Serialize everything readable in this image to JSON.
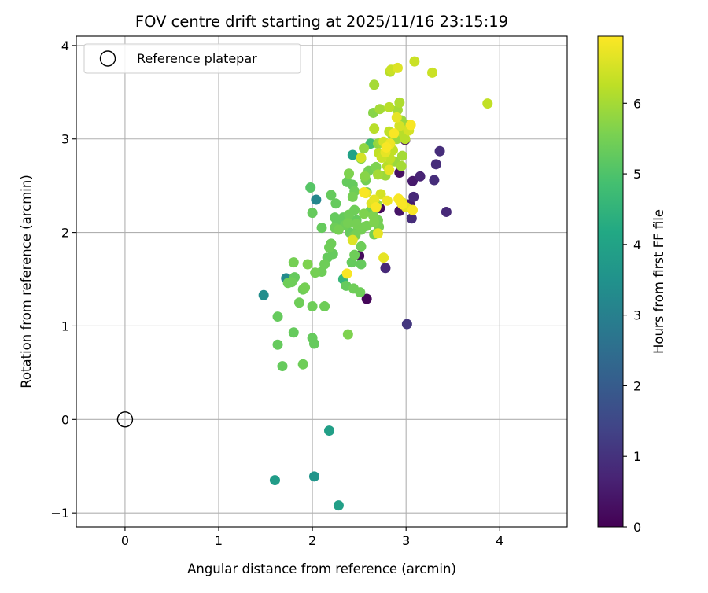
{
  "chart_data": {
    "type": "scatter",
    "title": "FOV centre drift starting at 2025/11/16 23:15:19",
    "xlabel": "Angular distance from reference (arcmin)",
    "ylabel": "Rotation from reference (arcmin)",
    "xlim": [
      -0.52,
      4.72
    ],
    "ylim": [
      -1.15,
      4.1
    ],
    "xticks": [
      0,
      1,
      2,
      3,
      4
    ],
    "yticks": [
      -1,
      0,
      1,
      2,
      3,
      4
    ],
    "xtick_labels": [
      "0",
      "1",
      "2",
      "3",
      "4"
    ],
    "ytick_labels": [
      "−1",
      "0",
      "1",
      "2",
      "3",
      "4"
    ],
    "grid": true,
    "legend": {
      "position": "top-left",
      "entries": [
        {
          "label": "Reference platepar",
          "marker": "open-circle"
        }
      ]
    },
    "reference_point": {
      "x": 0,
      "y": 0
    },
    "colorbar": {
      "label": "Hours from first FF file",
      "colormap": "viridis",
      "min": 0,
      "max": 6.95,
      "ticks": [
        0,
        1,
        2,
        3,
        4,
        5,
        6
      ],
      "tick_labels": [
        "0",
        "1",
        "2",
        "3",
        "4",
        "5",
        "6"
      ]
    },
    "points": [
      {
        "x": 2.02,
        "y": -0.61,
        "c": 3.6
      },
      {
        "x": 1.6,
        "y": -0.65,
        "c": 3.8
      },
      {
        "x": 2.28,
        "y": -0.92,
        "c": 3.9
      },
      {
        "x": 2.18,
        "y": -0.12,
        "c": 3.9
      },
      {
        "x": 1.48,
        "y": 1.33,
        "c": 3.4
      },
      {
        "x": 1.72,
        "y": 1.51,
        "c": 3.3
      },
      {
        "x": 2.04,
        "y": 2.35,
        "c": 3.2
      },
      {
        "x": 2.43,
        "y": 2.83,
        "c": 4.0
      },
      {
        "x": 2.33,
        "y": 1.5,
        "c": 4.6
      },
      {
        "x": 2.62,
        "y": 2.95,
        "c": 4.8
      },
      {
        "x": 1.98,
        "y": 2.48,
        "c": 5.1
      },
      {
        "x": 1.63,
        "y": 1.1,
        "c": 5.3
      },
      {
        "x": 1.63,
        "y": 0.8,
        "c": 5.3
      },
      {
        "x": 1.68,
        "y": 0.57,
        "c": 5.3
      },
      {
        "x": 1.8,
        "y": 0.93,
        "c": 5.3
      },
      {
        "x": 1.9,
        "y": 0.59,
        "c": 5.4
      },
      {
        "x": 2.0,
        "y": 0.87,
        "c": 5.3
      },
      {
        "x": 2.02,
        "y": 0.81,
        "c": 5.3
      },
      {
        "x": 2.0,
        "y": 1.21,
        "c": 5.4
      },
      {
        "x": 2.13,
        "y": 1.21,
        "c": 5.4
      },
      {
        "x": 1.86,
        "y": 1.25,
        "c": 5.4
      },
      {
        "x": 1.9,
        "y": 1.39,
        "c": 5.4
      },
      {
        "x": 1.92,
        "y": 1.41,
        "c": 5.5
      },
      {
        "x": 1.74,
        "y": 1.46,
        "c": 5.4
      },
      {
        "x": 1.78,
        "y": 1.47,
        "c": 5.4
      },
      {
        "x": 1.81,
        "y": 1.52,
        "c": 5.3
      },
      {
        "x": 1.8,
        "y": 1.68,
        "c": 5.5
      },
      {
        "x": 1.95,
        "y": 1.66,
        "c": 5.6
      },
      {
        "x": 2.03,
        "y": 1.57,
        "c": 5.5
      },
      {
        "x": 2.1,
        "y": 1.58,
        "c": 5.4
      },
      {
        "x": 2.13,
        "y": 1.66,
        "c": 5.4
      },
      {
        "x": 2.16,
        "y": 1.73,
        "c": 5.3
      },
      {
        "x": 2.18,
        "y": 1.84,
        "c": 5.4
      },
      {
        "x": 2.2,
        "y": 1.88,
        "c": 5.4
      },
      {
        "x": 2.22,
        "y": 1.77,
        "c": 5.3
      },
      {
        "x": 2.1,
        "y": 2.05,
        "c": 5.3
      },
      {
        "x": 2.0,
        "y": 2.21,
        "c": 5.3
      },
      {
        "x": 2.2,
        "y": 2.4,
        "c": 5.3
      },
      {
        "x": 2.25,
        "y": 2.31,
        "c": 5.3
      },
      {
        "x": 2.24,
        "y": 2.16,
        "c": 5.3
      },
      {
        "x": 2.26,
        "y": 2.09,
        "c": 5.3
      },
      {
        "x": 2.24,
        "y": 2.05,
        "c": 5.4
      },
      {
        "x": 2.28,
        "y": 2.03,
        "c": 5.5
      },
      {
        "x": 2.33,
        "y": 2.16,
        "c": 5.3
      },
      {
        "x": 2.35,
        "y": 2.08,
        "c": 5.4
      },
      {
        "x": 2.38,
        "y": 2.1,
        "c": 5.5
      },
      {
        "x": 2.39,
        "y": 2.19,
        "c": 5.4
      },
      {
        "x": 2.4,
        "y": 2.0,
        "c": 5.3
      },
      {
        "x": 2.37,
        "y": 2.54,
        "c": 5.3
      },
      {
        "x": 2.39,
        "y": 2.63,
        "c": 5.6
      },
      {
        "x": 2.43,
        "y": 2.51,
        "c": 5.3
      },
      {
        "x": 2.43,
        "y": 2.38,
        "c": 5.5
      },
      {
        "x": 2.45,
        "y": 2.44,
        "c": 5.4
      },
      {
        "x": 2.45,
        "y": 2.24,
        "c": 5.4
      },
      {
        "x": 2.47,
        "y": 2.13,
        "c": 5.3
      },
      {
        "x": 2.47,
        "y": 2.09,
        "c": 5.5
      },
      {
        "x": 2.49,
        "y": 2.04,
        "c": 5.4
      },
      {
        "x": 2.46,
        "y": 1.97,
        "c": 5.5
      },
      {
        "x": 2.44,
        "y": 1.96,
        "c": 5.4
      },
      {
        "x": 2.42,
        "y": 1.68,
        "c": 5.3
      },
      {
        "x": 2.45,
        "y": 1.76,
        "c": 5.4
      },
      {
        "x": 2.52,
        "y": 1.85,
        "c": 5.4
      },
      {
        "x": 2.52,
        "y": 1.66,
        "c": 5.3
      },
      {
        "x": 2.36,
        "y": 1.43,
        "c": 5.3
      },
      {
        "x": 2.44,
        "y": 1.4,
        "c": 5.4
      },
      {
        "x": 2.51,
        "y": 1.36,
        "c": 5.4
      },
      {
        "x": 2.38,
        "y": 0.91,
        "c": 5.6
      },
      {
        "x": 2.52,
        "y": 2.03,
        "c": 5.5
      },
      {
        "x": 2.55,
        "y": 2.06,
        "c": 5.4
      },
      {
        "x": 2.55,
        "y": 2.2,
        "c": 5.6
      },
      {
        "x": 2.58,
        "y": 2.07,
        "c": 5.5
      },
      {
        "x": 2.58,
        "y": 2.43,
        "c": 5.5
      },
      {
        "x": 2.56,
        "y": 2.6,
        "c": 5.7
      },
      {
        "x": 2.57,
        "y": 2.56,
        "c": 5.5
      },
      {
        "x": 2.6,
        "y": 2.66,
        "c": 5.5
      },
      {
        "x": 2.52,
        "y": 2.79,
        "c": 5.6
      },
      {
        "x": 2.55,
        "y": 2.9,
        "c": 5.8
      },
      {
        "x": 2.62,
        "y": 2.23,
        "c": 5.4
      },
      {
        "x": 2.65,
        "y": 2.18,
        "c": 5.6
      },
      {
        "x": 2.66,
        "y": 2.11,
        "c": 5.6
      },
      {
        "x": 2.66,
        "y": 1.98,
        "c": 5.5
      },
      {
        "x": 2.69,
        "y": 2.3,
        "c": 5.8
      },
      {
        "x": 2.7,
        "y": 2.13,
        "c": 5.5
      },
      {
        "x": 2.71,
        "y": 2.06,
        "c": 5.5
      },
      {
        "x": 2.68,
        "y": 2.7,
        "c": 5.6
      },
      {
        "x": 2.7,
        "y": 2.95,
        "c": 5.8
      },
      {
        "x": 2.65,
        "y": 3.28,
        "c": 5.7
      },
      {
        "x": 2.66,
        "y": 3.58,
        "c": 6.0
      },
      {
        "x": 2.66,
        "y": 3.11,
        "c": 6.2
      },
      {
        "x": 2.71,
        "y": 2.85,
        "c": 6.3
      },
      {
        "x": 2.73,
        "y": 2.96,
        "c": 5.9
      },
      {
        "x": 2.74,
        "y": 2.8,
        "c": 6.4
      },
      {
        "x": 2.76,
        "y": 2.97,
        "c": 6.5
      },
      {
        "x": 2.7,
        "y": 2.62,
        "c": 6.0
      },
      {
        "x": 2.72,
        "y": 3.32,
        "c": 6.0
      },
      {
        "x": 2.78,
        "y": 2.61,
        "c": 5.9
      },
      {
        "x": 2.8,
        "y": 2.71,
        "c": 6.2
      },
      {
        "x": 2.82,
        "y": 3.08,
        "c": 6.3
      },
      {
        "x": 2.82,
        "y": 3.34,
        "c": 6.2
      },
      {
        "x": 2.85,
        "y": 3.05,
        "c": 5.9
      },
      {
        "x": 2.83,
        "y": 2.79,
        "c": 6.3
      },
      {
        "x": 2.86,
        "y": 2.88,
        "c": 6.3
      },
      {
        "x": 2.88,
        "y": 2.76,
        "c": 5.9
      },
      {
        "x": 2.9,
        "y": 3.0,
        "c": 5.9
      },
      {
        "x": 2.91,
        "y": 3.31,
        "c": 6.0
      },
      {
        "x": 2.93,
        "y": 3.39,
        "c": 6.1
      },
      {
        "x": 2.93,
        "y": 3.14,
        "c": 6.5
      },
      {
        "x": 2.96,
        "y": 2.82,
        "c": 6.0
      },
      {
        "x": 2.95,
        "y": 2.71,
        "c": 6.0
      },
      {
        "x": 2.96,
        "y": 3.07,
        "c": 6.2
      },
      {
        "x": 2.96,
        "y": 2.32,
        "c": 6.6
      },
      {
        "x": 2.95,
        "y": 3.2,
        "c": 5.9
      },
      {
        "x": 3.0,
        "y": 3.15,
        "c": 5.9
      },
      {
        "x": 3.02,
        "y": 3.1,
        "c": 6.4
      },
      {
        "x": 2.99,
        "y": 3.0,
        "c": 6.2
      },
      {
        "x": 3.05,
        "y": 3.15,
        "c": 6.9
      },
      {
        "x": 3.03,
        "y": 3.09,
        "c": 6.5
      },
      {
        "x": 2.83,
        "y": 3.72,
        "c": 6.2
      },
      {
        "x": 2.84,
        "y": 3.74,
        "c": 6.4
      },
      {
        "x": 2.91,
        "y": 3.76,
        "c": 6.6
      },
      {
        "x": 3.09,
        "y": 3.83,
        "c": 6.4
      },
      {
        "x": 3.28,
        "y": 3.71,
        "c": 6.4
      },
      {
        "x": 3.87,
        "y": 3.38,
        "c": 6.3
      },
      {
        "x": 2.52,
        "y": 2.8,
        "c": 6.5
      },
      {
        "x": 2.55,
        "y": 2.43,
        "c": 6.9
      },
      {
        "x": 2.57,
        "y": 2.42,
        "c": 6.8
      },
      {
        "x": 2.63,
        "y": 2.31,
        "c": 6.6
      },
      {
        "x": 2.66,
        "y": 2.35,
        "c": 6.7
      },
      {
        "x": 2.68,
        "y": 2.27,
        "c": 6.9
      },
      {
        "x": 2.7,
        "y": 1.99,
        "c": 6.7
      },
      {
        "x": 2.73,
        "y": 2.41,
        "c": 6.5
      },
      {
        "x": 2.76,
        "y": 1.73,
        "c": 6.7
      },
      {
        "x": 2.8,
        "y": 2.34,
        "c": 6.8
      },
      {
        "x": 2.83,
        "y": 2.95,
        "c": 6.8
      },
      {
        "x": 2.79,
        "y": 2.91,
        "c": 6.9
      },
      {
        "x": 2.78,
        "y": 2.86,
        "c": 6.7
      },
      {
        "x": 2.82,
        "y": 2.67,
        "c": 6.7
      },
      {
        "x": 2.87,
        "y": 3.06,
        "c": 6.9
      },
      {
        "x": 2.9,
        "y": 3.23,
        "c": 6.7
      },
      {
        "x": 2.92,
        "y": 2.36,
        "c": 6.9
      },
      {
        "x": 2.94,
        "y": 2.33,
        "c": 6.8
      },
      {
        "x": 2.96,
        "y": 2.3,
        "c": 6.9
      },
      {
        "x": 3.07,
        "y": 2.24,
        "c": 6.9
      },
      {
        "x": 2.43,
        "y": 1.92,
        "c": 6.6
      },
      {
        "x": 2.37,
        "y": 1.56,
        "c": 6.9
      },
      {
        "x": 3.0,
        "y": 2.27,
        "c": 6.7
      },
      {
        "x": 2.58,
        "y": 1.29,
        "c": 0.1
      },
      {
        "x": 2.5,
        "y": 1.75,
        "c": 0.2
      },
      {
        "x": 2.72,
        "y": 2.26,
        "c": 0.2
      },
      {
        "x": 2.93,
        "y": 2.23,
        "c": 0.4
      },
      {
        "x": 2.93,
        "y": 2.64,
        "c": 0.3
      },
      {
        "x": 2.99,
        "y": 2.99,
        "c": 0.3
      },
      {
        "x": 3.04,
        "y": 2.3,
        "c": 0.5
      },
      {
        "x": 3.07,
        "y": 2.55,
        "c": 0.5
      },
      {
        "x": 3.02,
        "y": 2.3,
        "c": 0.6
      },
      {
        "x": 3.06,
        "y": 2.15,
        "c": 0.9
      },
      {
        "x": 3.08,
        "y": 2.38,
        "c": 0.8
      },
      {
        "x": 3.15,
        "y": 2.6,
        "c": 0.7
      },
      {
        "x": 3.3,
        "y": 2.56,
        "c": 0.9
      },
      {
        "x": 3.32,
        "y": 2.73,
        "c": 0.9
      },
      {
        "x": 3.36,
        "y": 2.87,
        "c": 0.9
      },
      {
        "x": 3.43,
        "y": 2.22,
        "c": 0.8
      },
      {
        "x": 3.01,
        "y": 1.02,
        "c": 1.1
      },
      {
        "x": 2.78,
        "y": 1.62,
        "c": 0.8
      }
    ]
  }
}
